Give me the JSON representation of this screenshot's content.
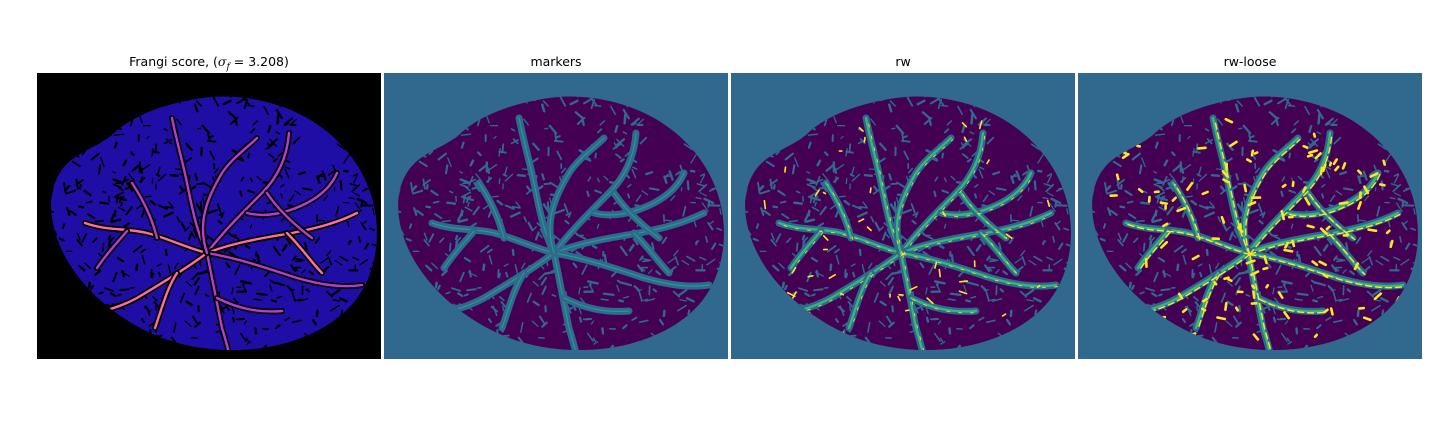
{
  "panels": [
    {
      "id": "frangi",
      "title_prefix": "Frangi score, (",
      "title_sigma": "σ",
      "title_sub": "f",
      "title_suffix": " = 3.208)",
      "colors": {
        "background": "#000000",
        "tissue": "#1f0ea6",
        "vessel": "#b83ccf",
        "hot": "#ff6ea0"
      }
    },
    {
      "id": "markers",
      "title": "markers",
      "colors": {
        "background": "#30688e",
        "tissue": "#440154",
        "vessel": "#1f9e89"
      }
    },
    {
      "id": "rw",
      "title": "rw",
      "colors": {
        "background": "#30688e",
        "tissue": "#440154",
        "vessel": "#35b779",
        "highlight": "#fde725"
      }
    },
    {
      "id": "rw-loose",
      "title": "rw-loose",
      "colors": {
        "background": "#30688e",
        "tissue": "#440154",
        "vessel": "#35b779",
        "highlight": "#fde725"
      }
    }
  ]
}
